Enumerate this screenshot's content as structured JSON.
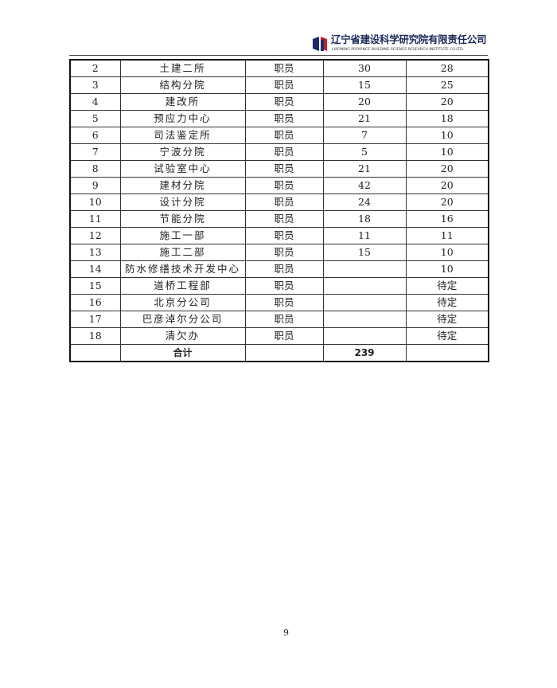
{
  "header": {
    "company_cn": "辽宁省建设科学研究院有限责任公司",
    "company_en": "LIAONING PROVINCE BUILDING SCIENCE RESEARCH INSTITUTE CO.LTD.",
    "logo_colors": [
      "#1a2a6a",
      "#c8202a"
    ]
  },
  "table": {
    "rows": [
      {
        "no": "2",
        "dept": "土建二所",
        "role": "职员",
        "current": "30",
        "planned": "28"
      },
      {
        "no": "3",
        "dept": "结构分院",
        "role": "职员",
        "current": "15",
        "planned": "25"
      },
      {
        "no": "4",
        "dept": "建改所",
        "role": "职员",
        "current": "20",
        "planned": "20"
      },
      {
        "no": "5",
        "dept": "预应力中心",
        "role": "职员",
        "current": "21",
        "planned": "18"
      },
      {
        "no": "6",
        "dept": "司法鉴定所",
        "role": "职员",
        "current": "7",
        "planned": "10"
      },
      {
        "no": "7",
        "dept": "宁波分院",
        "role": "职员",
        "current": "5",
        "planned": "10"
      },
      {
        "no": "8",
        "dept": "试验室中心",
        "role": "职员",
        "current": "21",
        "planned": "20"
      },
      {
        "no": "9",
        "dept": "建材分院",
        "role": "职员",
        "current": "42",
        "planned": "20"
      },
      {
        "no": "10",
        "dept": "设计分院",
        "role": "职员",
        "current": "24",
        "planned": "20"
      },
      {
        "no": "11",
        "dept": "节能分院",
        "role": "职员",
        "current": "18",
        "planned": "16"
      },
      {
        "no": "12",
        "dept": "施工一部",
        "role": "职员",
        "current": "11",
        "planned": "11"
      },
      {
        "no": "13",
        "dept": "施工二部",
        "role": "职员",
        "current": "15",
        "planned": "10"
      },
      {
        "no": "14",
        "dept": "防水修缮技术开发中心",
        "role": "职员",
        "current": "",
        "planned": "10"
      },
      {
        "no": "15",
        "dept": "道桥工程部",
        "role": "职员",
        "current": "",
        "planned": "待定"
      },
      {
        "no": "16",
        "dept": "北京分公司",
        "role": "职员",
        "current": "",
        "planned": "待定"
      },
      {
        "no": "17",
        "dept": "巴彦淖尔分公司",
        "role": "职员",
        "current": "",
        "planned": "待定"
      },
      {
        "no": "18",
        "dept": "清欠办",
        "role": "职员",
        "current": "",
        "planned": "待定"
      }
    ],
    "total": {
      "label": "合计",
      "current": "239"
    }
  },
  "footer": {
    "page_number": "9"
  }
}
